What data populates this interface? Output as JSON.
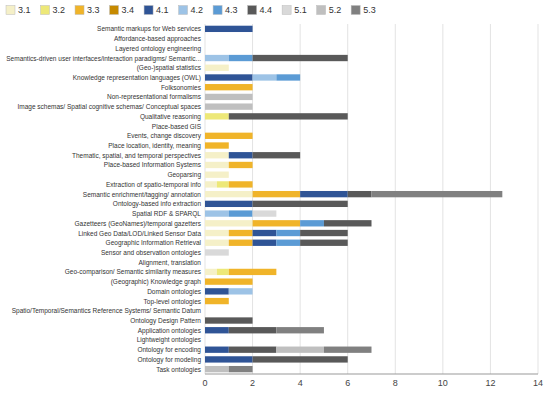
{
  "chart_data": {
    "type": "bar",
    "orientation": "horizontal",
    "stacked": true,
    "categories": [
      "Semantic markups for Web services",
      "Affordance-based approaches",
      "Layered ontology engineering",
      "Semantics-driven user interfaces/interaction paradigms/ Semantic...",
      "(Geo-)spatial statistics",
      "Knowledge representation languages (OWL)",
      "Folksonomies",
      "Non-representational formalisms",
      "Image schemas/ Spatial cognitive schemas/ Conceptual spaces",
      "Qualitative reasoning",
      "Place-based GIS",
      "Events, change discovery",
      "Place location, identity, meaning",
      "Thematic, spatial, and temporal perspectives",
      "Place-based Information Systems",
      "Geoparsing",
      "Extraction of spatio-temporal info",
      "Semantic enrichment/tagging/ annotation",
      "Ontology-based info extraction",
      "Spatial RDF & SPARQL",
      "Gazetteers (GeoNames)/temporal gazetters",
      "Linked Geo Data/LOD/Linked Sensor Data",
      "Geographic Information Retrieval",
      "Sensor and observation ontologies",
      "Alignment, translation",
      "Geo-comparison/ Semantic similarity measures",
      "(Geographic) Knowledge graph",
      "Domain ontologies",
      "Top-level ontologies",
      "Spatio/Temporal/Semantics Reference Systems/ Semantic Datum",
      "Ontology Design Pattern",
      "Application ontologies",
      "Lightweight ontologies",
      "Ontology for encoding",
      "Ontology for modeling",
      "Task ontologies"
    ],
    "series": [
      {
        "name": "3.1",
        "color": "#f5f0c8",
        "values": [
          0,
          0,
          0,
          0,
          1,
          0,
          0,
          0,
          0,
          0,
          0,
          0,
          0,
          1,
          1,
          1,
          0.5,
          2,
          0,
          0,
          2,
          1,
          1,
          0,
          0,
          0.5,
          0,
          0,
          0,
          0,
          0,
          0,
          0,
          0,
          0,
          0
        ]
      },
      {
        "name": "3.2",
        "color": "#ede878",
        "values": [
          0,
          0,
          0,
          0,
          0,
          0,
          0,
          0,
          0,
          1,
          0,
          0,
          0,
          0,
          0,
          0,
          0.5,
          0,
          0,
          0,
          0,
          0,
          0,
          0,
          0,
          0.5,
          0,
          0,
          0,
          0,
          0,
          0,
          0,
          0,
          0,
          0
        ]
      },
      {
        "name": "3.3",
        "color": "#f0b429",
        "values": [
          0,
          0,
          0,
          0,
          0,
          0,
          2,
          0,
          0,
          0,
          0,
          2,
          1,
          0,
          1,
          0,
          1,
          2,
          0,
          0,
          2,
          1,
          1,
          0,
          0,
          2,
          2,
          0,
          1,
          0,
          0,
          0,
          0,
          0,
          0,
          0
        ]
      },
      {
        "name": "3.4",
        "color": "#c68a00",
        "values": [
          0,
          0,
          0,
          0,
          0,
          0,
          0,
          0,
          0,
          0,
          0,
          0,
          0,
          0,
          0,
          0,
          0,
          0,
          0,
          0,
          0,
          0,
          0,
          0,
          0,
          0,
          0,
          0,
          0,
          0,
          0,
          0,
          0,
          0,
          0,
          0
        ]
      },
      {
        "name": "4.1",
        "color": "#2f5496",
        "values": [
          2,
          0,
          0,
          0,
          0,
          2,
          0,
          0,
          0,
          0,
          0,
          0,
          0,
          1,
          0,
          0,
          0,
          2,
          2,
          0,
          0,
          1,
          1,
          0,
          0,
          0,
          0,
          1,
          0,
          0,
          0,
          1,
          0,
          1,
          2,
          0
        ]
      },
      {
        "name": "4.2",
        "color": "#9dc3e6",
        "values": [
          0,
          0,
          0,
          1,
          0,
          1,
          0,
          0,
          0,
          0,
          0,
          0,
          0,
          0,
          0,
          0,
          0,
          0,
          0,
          1,
          0,
          0,
          0,
          0,
          0,
          0,
          0,
          1,
          0,
          0,
          0,
          0,
          0,
          0,
          0,
          0
        ]
      },
      {
        "name": "4.3",
        "color": "#5b9bd5",
        "values": [
          0,
          0,
          0,
          1,
          0,
          1,
          0,
          0,
          0,
          0,
          0,
          0,
          0,
          0,
          0,
          0,
          0,
          0,
          0,
          1,
          1,
          1,
          1,
          0,
          0,
          0,
          0,
          0,
          0,
          0,
          0,
          0,
          0,
          0,
          0,
          0
        ]
      },
      {
        "name": "4.4",
        "color": "#595959",
        "values": [
          0,
          0,
          0,
          4,
          0,
          0,
          0,
          0,
          0,
          5,
          0,
          0,
          0,
          2,
          0,
          0,
          0,
          1,
          4,
          0,
          2,
          2,
          2,
          0,
          0,
          0,
          0,
          0,
          0,
          0,
          2,
          2,
          0,
          2,
          4,
          0
        ]
      },
      {
        "name": "5.1",
        "color": "#d9d9d9",
        "values": [
          0,
          0,
          0,
          0,
          0,
          0,
          0,
          0,
          0,
          0,
          0,
          0,
          0,
          0,
          0,
          0,
          0,
          0,
          0,
          1,
          0,
          0,
          0,
          1,
          0,
          0,
          0,
          0,
          0,
          0,
          0,
          0,
          0,
          0,
          0,
          0
        ]
      },
      {
        "name": "5.2",
        "color": "#bfbfbf",
        "values": [
          0,
          0,
          0,
          0,
          0,
          0,
          0,
          2,
          2,
          0,
          0,
          0,
          0,
          0,
          0,
          0,
          0,
          0,
          0,
          0,
          0,
          0,
          0,
          0,
          0,
          0,
          0,
          0,
          0,
          0,
          0,
          0,
          0,
          2,
          0,
          1
        ]
      },
      {
        "name": "5.3",
        "color": "#808080",
        "values": [
          0,
          0,
          0,
          0,
          0,
          0,
          0,
          0,
          0,
          0,
          0,
          0,
          0,
          0,
          0,
          0,
          0,
          5.5,
          0,
          0,
          0,
          0,
          0,
          0,
          0,
          0,
          0,
          0,
          0,
          0,
          0,
          2,
          0,
          2,
          0,
          1
        ]
      }
    ],
    "xlim": [
      0,
      14
    ],
    "xticks": [
      0,
      2,
      4,
      6,
      8,
      10,
      12,
      14
    ],
    "grid": true,
    "legend": "upper left"
  }
}
